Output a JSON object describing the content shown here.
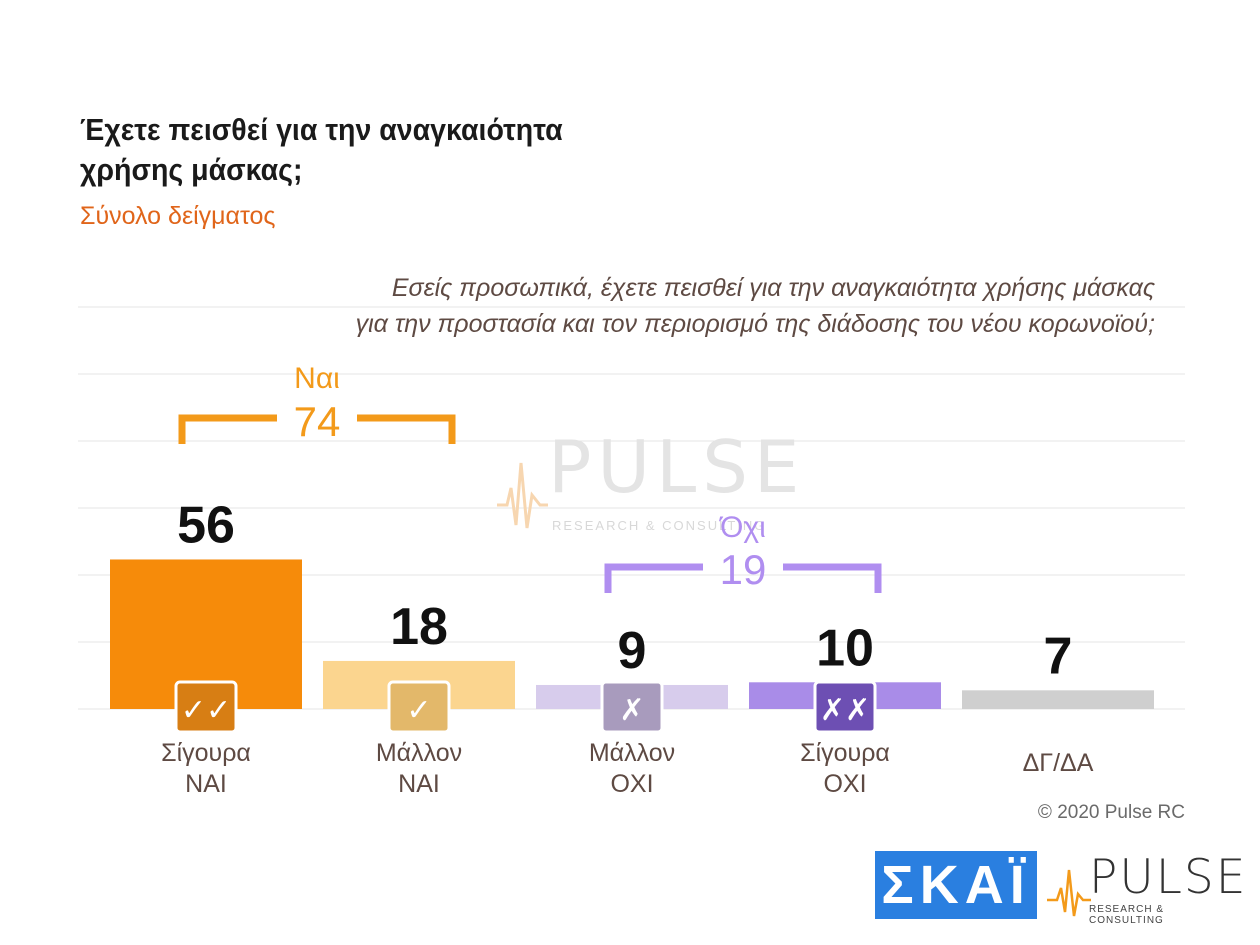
{
  "header": {
    "title_line1": "Έχετε πεισθεί για την αναγκαιότητα",
    "title_line2": "χρήσης μάσκας;",
    "subtitle": "Σύνολο δείγματος",
    "question_line1": "Εσείς προσωπικά, έχετε πεισθεί για την αναγκαιότητα χρήσης μάσκας",
    "question_line2": "για την προστασία και τον περιορισμό της διάδοσης του νέου κορωνοϊού;"
  },
  "chart_data": {
    "type": "bar",
    "categories": [
      "Σίγουρα\nΝΑΙ",
      "Μάλλον\nΝΑΙ",
      "Μάλλον\nΟΧΙ",
      "Σίγουρα\nΟΧΙ",
      "ΔΓ/ΔΑ"
    ],
    "values": [
      56,
      18,
      9,
      10,
      7
    ],
    "colors": [
      "#f68b0a",
      "#fbd58f",
      "#d7ccec",
      "#a98ce8",
      "#cfcfcf"
    ],
    "icons": [
      "double-check-icon",
      "check-icon",
      "cross-icon",
      "double-cross-icon",
      ""
    ],
    "icon_colors": [
      "#d77e14",
      "#e3b86a",
      "#a89bbd",
      "#6d4fb3",
      ""
    ],
    "icon_glyphs": [
      "✓✓",
      "✓",
      "✗",
      "✗✗",
      ""
    ],
    "grid": true,
    "groups": [
      {
        "label": "Ναι",
        "value": 74,
        "color": "#f39a1a",
        "spans": [
          0,
          1
        ]
      },
      {
        "label": "Όχι",
        "value": 19,
        "color": "#b08ef0",
        "spans": [
          2,
          3
        ]
      }
    ]
  },
  "watermark": {
    "word": "PULSE",
    "sub": "RESEARCH & CONSULTING"
  },
  "footer": {
    "copyright": "© 2020 Pulse RC",
    "skai_logo": "ΣΚΑΪ",
    "pulse_logo": "PULSE",
    "pulse_sub": "RESEARCH & CONSULTING"
  }
}
